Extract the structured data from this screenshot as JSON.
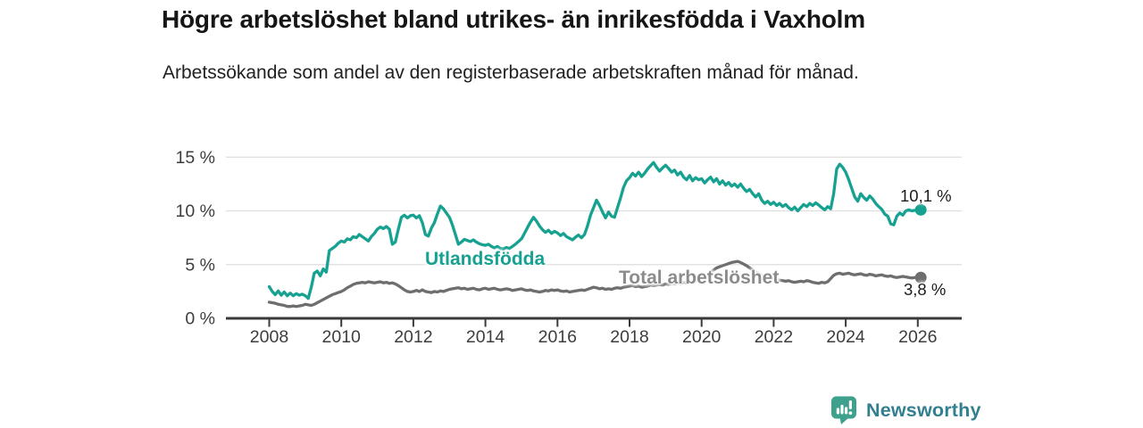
{
  "header": {
    "title": "Högre arbetslöshet bland utrikes- än inrikesfödda i Vaxholm",
    "subtitle": "Arbetssökande som andel av den registerbaserade arbetskraften månad för månad."
  },
  "footer": {
    "brand": "Newsworthy",
    "logo_icon": "speech-bubble-bar-chart",
    "logo_color": "#3da18e",
    "brand_text_color": "#31808f"
  },
  "chart_data": {
    "type": "line",
    "title": "Högre arbetslöshet bland utrikes- än inrikesfödda i Vaxholm",
    "subtitle": "Arbetssökande som andel av den registerbaserade arbetskraften månad för månad.",
    "x_unit": "month",
    "x_start": "2008-01",
    "x_end": "2026-02",
    "x_ticks": [
      2008,
      2010,
      2012,
      2014,
      2016,
      2018,
      2020,
      2022,
      2024,
      2026
    ],
    "x_tick_labels": [
      "2008",
      "2010",
      "2012",
      "2014",
      "2016",
      "2018",
      "2020",
      "2022",
      "2024",
      "2026"
    ],
    "y_ticks": [
      0,
      5,
      10,
      15
    ],
    "y_tick_labels": [
      "0 %",
      "5 %",
      "10 %",
      "15 %"
    ],
    "ylim": [
      0,
      15.5
    ],
    "grid": "horizontal",
    "grid_color": "#dedede",
    "axis_color": "#3a3a3a",
    "tick_label_color": "#3d3d3d",
    "legend_position": "inline-labels",
    "series": [
      {
        "name": "Utlandsfödda",
        "color": "#16a191",
        "end_label": "10,1 %",
        "last_value": 10.1,
        "values": [
          2.95,
          2.5,
          2.2,
          2.55,
          2.15,
          2.45,
          2.1,
          2.35,
          2.1,
          2.3,
          2.15,
          2.25,
          2.1,
          1.85,
          2.9,
          4.2,
          4.4,
          3.95,
          4.6,
          4.3,
          6.3,
          6.5,
          6.7,
          7.0,
          7.2,
          7.1,
          7.4,
          7.3,
          7.6,
          7.5,
          7.8,
          7.6,
          7.4,
          7.2,
          7.6,
          7.9,
          8.3,
          8.5,
          8.35,
          8.55,
          8.3,
          6.9,
          7.1,
          8.3,
          9.4,
          9.6,
          9.35,
          9.55,
          9.6,
          9.35,
          9.55,
          8.9,
          7.8,
          7.65,
          8.4,
          8.9,
          9.7,
          10.45,
          10.2,
          9.8,
          9.4,
          8.7,
          7.8,
          6.9,
          7.1,
          7.35,
          7.25,
          7.15,
          7.3,
          7.1,
          6.95,
          6.85,
          6.8,
          6.9,
          6.7,
          6.55,
          6.7,
          6.5,
          6.45,
          6.6,
          6.5,
          6.7,
          6.9,
          7.15,
          7.4,
          7.9,
          8.45,
          8.95,
          9.4,
          9.05,
          8.6,
          8.25,
          8.0,
          8.2,
          7.9,
          8.1,
          7.95,
          7.7,
          7.9,
          7.6,
          7.45,
          7.3,
          7.55,
          7.75,
          7.5,
          7.8,
          8.6,
          9.6,
          10.3,
          11.0,
          10.5,
          9.9,
          9.35,
          9.9,
          9.5,
          9.4,
          10.3,
          11.2,
          12.2,
          12.8,
          13.1,
          13.5,
          13.25,
          13.6,
          13.2,
          13.5,
          13.9,
          14.2,
          14.5,
          14.05,
          13.7,
          14.0,
          14.25,
          13.95,
          13.6,
          13.8,
          13.35,
          13.6,
          13.15,
          12.9,
          13.3,
          12.8,
          13.1,
          12.9,
          13.0,
          12.6,
          12.9,
          13.15,
          12.7,
          13.0,
          12.5,
          12.8,
          12.4,
          12.65,
          12.3,
          12.5,
          12.2,
          12.5,
          12.1,
          11.8,
          12.0,
          11.6,
          11.3,
          11.6,
          11.0,
          10.7,
          10.9,
          10.6,
          10.8,
          10.5,
          10.7,
          10.4,
          10.6,
          10.3,
          10.1,
          10.35,
          10.0,
          10.3,
          10.6,
          10.4,
          10.7,
          10.5,
          10.75,
          10.55,
          10.3,
          10.1,
          10.4,
          10.2,
          11.6,
          13.9,
          14.35,
          14.05,
          13.6,
          12.9,
          12.1,
          11.3,
          10.9,
          11.6,
          11.25,
          11.0,
          11.4,
          11.1,
          10.7,
          10.4,
          10.15,
          9.7,
          9.5,
          8.8,
          8.7,
          9.5,
          9.8,
          9.6,
          10.0,
          10.1,
          10.0,
          10.05,
          10.0,
          10.1
        ]
      },
      {
        "name": "Total arbetslöshet",
        "color": "#6e6e6e",
        "label_color": "#8b8b8b",
        "end_label": "3,8 %",
        "last_value": 3.8,
        "values": [
          1.5,
          1.45,
          1.4,
          1.3,
          1.25,
          1.2,
          1.1,
          1.1,
          1.15,
          1.1,
          1.15,
          1.2,
          1.3,
          1.25,
          1.2,
          1.3,
          1.45,
          1.6,
          1.75,
          1.9,
          2.05,
          2.2,
          2.3,
          2.4,
          2.5,
          2.65,
          2.85,
          3.0,
          3.15,
          3.25,
          3.3,
          3.35,
          3.3,
          3.4,
          3.35,
          3.3,
          3.35,
          3.4,
          3.3,
          3.35,
          3.25,
          3.3,
          3.2,
          3.05,
          2.85,
          2.65,
          2.5,
          2.45,
          2.5,
          2.6,
          2.5,
          2.65,
          2.5,
          2.45,
          2.4,
          2.5,
          2.45,
          2.55,
          2.5,
          2.6,
          2.7,
          2.75,
          2.8,
          2.85,
          2.75,
          2.8,
          2.7,
          2.75,
          2.8,
          2.7,
          2.65,
          2.75,
          2.8,
          2.7,
          2.75,
          2.8,
          2.7,
          2.65,
          2.7,
          2.75,
          2.7,
          2.6,
          2.65,
          2.7,
          2.75,
          2.65,
          2.6,
          2.65,
          2.55,
          2.5,
          2.45,
          2.5,
          2.6,
          2.55,
          2.65,
          2.6,
          2.65,
          2.55,
          2.5,
          2.55,
          2.45,
          2.5,
          2.55,
          2.6,
          2.65,
          2.6,
          2.7,
          2.8,
          2.9,
          2.85,
          2.75,
          2.8,
          2.7,
          2.75,
          2.7,
          2.8,
          2.85,
          2.8,
          2.9,
          2.95,
          3.0,
          3.05,
          2.95,
          3.0,
          2.9,
          2.95,
          3.0,
          3.1,
          3.05,
          3.1,
          3.15,
          3.1,
          3.2,
          3.15,
          3.25,
          3.2,
          3.3,
          3.25,
          3.35,
          3.3,
          3.4,
          3.35,
          3.45,
          3.5,
          3.6,
          3.75,
          3.95,
          4.25,
          4.5,
          4.7,
          4.8,
          4.9,
          5.0,
          5.1,
          5.2,
          5.25,
          5.3,
          5.2,
          5.05,
          4.9,
          4.7,
          4.5,
          4.3,
          4.15,
          4.0,
          3.9,
          3.8,
          3.75,
          3.7,
          3.6,
          3.55,
          3.5,
          3.45,
          3.5,
          3.4,
          3.35,
          3.4,
          3.45,
          3.4,
          3.5,
          3.45,
          3.35,
          3.3,
          3.25,
          3.35,
          3.3,
          3.4,
          3.7,
          4.0,
          4.15,
          4.2,
          4.1,
          4.15,
          4.2,
          4.1,
          4.05,
          4.1,
          4.15,
          4.05,
          4.0,
          4.1,
          4.05,
          3.95,
          4.0,
          4.05,
          3.95,
          3.9,
          3.95,
          3.85,
          3.8,
          3.85,
          3.9,
          3.85,
          3.8,
          3.75,
          3.8,
          3.85,
          3.8
        ]
      }
    ]
  }
}
